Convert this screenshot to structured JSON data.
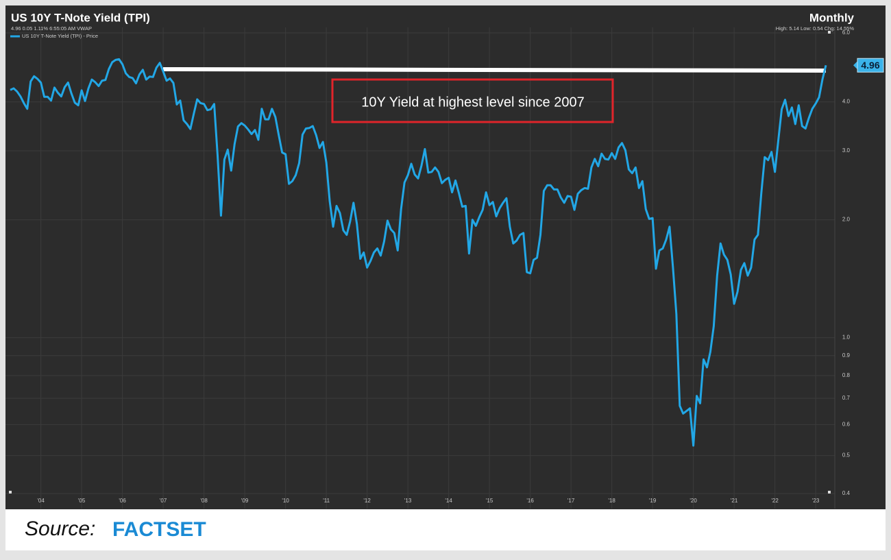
{
  "chart_data": {
    "type": "line",
    "title": "US 10Y T-Note Yield (TPI)",
    "subtitle": "4.96 0.05 1.11% 6:55:05 AM VWAP",
    "frequency": "Monthly",
    "stats": "High: 5.14 Low: 0.54 Chg: 14.55%",
    "annotation": "10Y Yield at highest level since 2007",
    "log_scale": true,
    "grid": true,
    "ylim": [
      0.4,
      6.0
    ],
    "yticks": [
      0.4,
      0.5,
      0.6,
      0.7,
      0.8,
      0.9,
      {
        "value": 1,
        "label": "1.0"
      },
      {
        "value": 2,
        "label": "2.0"
      },
      {
        "value": 3,
        "label": "3.0"
      },
      {
        "value": 4,
        "label": "4.0"
      },
      {
        "value": 6,
        "label": "6.0"
      }
    ],
    "categories": [
      null,
      null,
      null,
      null,
      null,
      null,
      null,
      null,
      null,
      "'04",
      null,
      null,
      null,
      null,
      null,
      null,
      null,
      null,
      null,
      null,
      null,
      "'05",
      null,
      null,
      null,
      null,
      null,
      null,
      null,
      null,
      null,
      null,
      null,
      "'06",
      null,
      null,
      null,
      null,
      null,
      null,
      null,
      null,
      null,
      null,
      null,
      "'07",
      null,
      null,
      null,
      null,
      null,
      null,
      null,
      null,
      null,
      null,
      null,
      "'08",
      null,
      null,
      null,
      null,
      null,
      null,
      null,
      null,
      null,
      null,
      null,
      "'09",
      null,
      null,
      null,
      null,
      null,
      null,
      null,
      null,
      null,
      null,
      null,
      "'10",
      null,
      null,
      null,
      null,
      null,
      null,
      null,
      null,
      null,
      null,
      null,
      "'11",
      null,
      null,
      null,
      null,
      null,
      null,
      null,
      null,
      null,
      null,
      null,
      "'12",
      null,
      null,
      null,
      null,
      null,
      null,
      null,
      null,
      null,
      null,
      null,
      "'13",
      null,
      null,
      null,
      null,
      null,
      null,
      null,
      null,
      null,
      null,
      null,
      "'14",
      null,
      null,
      null,
      null,
      null,
      null,
      null,
      null,
      null,
      null,
      null,
      "'15",
      null,
      null,
      null,
      null,
      null,
      null,
      null,
      null,
      null,
      null,
      null,
      "'16",
      null,
      null,
      null,
      null,
      null,
      null,
      null,
      null,
      null,
      null,
      null,
      "'17",
      null,
      null,
      null,
      null,
      null,
      null,
      null,
      null,
      null,
      null,
      null,
      "'18",
      null,
      null,
      null,
      null,
      null,
      null,
      null,
      null,
      null,
      null,
      null,
      "'19",
      null,
      null,
      null,
      null,
      null,
      null,
      null,
      null,
      null,
      null,
      null,
      "'20",
      null,
      null,
      null,
      null,
      null,
      null,
      null,
      null,
      null,
      null,
      null,
      "'21",
      null,
      null,
      null,
      null,
      null,
      null,
      null,
      null,
      null,
      null,
      null,
      "'22",
      null,
      null,
      null,
      null,
      null,
      null,
      null,
      null,
      null,
      null,
      null,
      "'23",
      null,
      null,
      null
    ],
    "series": [
      {
        "name": "US 10Y T-Note Yield (TPI) - Price",
        "color": "#22a7e6",
        "values": [
          4.29,
          4.33,
          4.25,
          4.13,
          3.97,
          3.84,
          4.51,
          4.65,
          4.58,
          4.48,
          4.12,
          4.12,
          4.03,
          4.35,
          4.22,
          4.13,
          4.36,
          4.48,
          4.2,
          3.98,
          3.92,
          4.28,
          4.02,
          4.33,
          4.56,
          4.49,
          4.39,
          4.53,
          4.55,
          4.85,
          5.05,
          5.12,
          5.14,
          4.99,
          4.73,
          4.63,
          4.6,
          4.46,
          4.7,
          4.83,
          4.56,
          4.64,
          4.63,
          4.89,
          5.03,
          4.78,
          4.53,
          4.59,
          4.47,
          3.94,
          4.03,
          3.59,
          3.51,
          3.41,
          3.73,
          4.06,
          3.97,
          3.95,
          3.81,
          3.83,
          3.95,
          2.92,
          2.05,
          2.85,
          3.02,
          2.67,
          3.12,
          3.46,
          3.53,
          3.48,
          3.4,
          3.31,
          3.39,
          3.2,
          3.84,
          3.61,
          3.61,
          3.84,
          3.66,
          3.29,
          2.97,
          2.94,
          2.47,
          2.51,
          2.6,
          2.79,
          3.3,
          3.42,
          3.43,
          3.47,
          3.29,
          3.05,
          3.16,
          2.8,
          2.23,
          1.92,
          2.17,
          2.08,
          1.88,
          1.83,
          1.98,
          2.21,
          1.95,
          1.59,
          1.65,
          1.51,
          1.57,
          1.65,
          1.69,
          1.62,
          1.76,
          1.99,
          1.89,
          1.85,
          1.67,
          2.13,
          2.49,
          2.6,
          2.78,
          2.61,
          2.55,
          2.75,
          3.03,
          2.64,
          2.65,
          2.72,
          2.65,
          2.48,
          2.53,
          2.56,
          2.35,
          2.52,
          2.34,
          2.16,
          2.17,
          1.64,
          2.0,
          1.93,
          2.03,
          2.12,
          2.35,
          2.18,
          2.22,
          2.04,
          2.14,
          2.21,
          2.27,
          1.92,
          1.74,
          1.77,
          1.83,
          1.85,
          1.47,
          1.46,
          1.58,
          1.6,
          1.83,
          2.37,
          2.45,
          2.45,
          2.39,
          2.39,
          2.28,
          2.21,
          2.3,
          2.29,
          2.12,
          2.33,
          2.38,
          2.41,
          2.4,
          2.72,
          2.86,
          2.74,
          2.95,
          2.86,
          2.85,
          2.96,
          2.86,
          3.06,
          3.14,
          3.01,
          2.69,
          2.63,
          2.72,
          2.41,
          2.51,
          2.13,
          2.01,
          2.02,
          1.5,
          1.67,
          1.69,
          1.78,
          1.92,
          1.51,
          1.15,
          0.67,
          0.64,
          0.65,
          0.66,
          0.53,
          0.71,
          0.68,
          0.88,
          0.84,
          0.92,
          1.07,
          1.44,
          1.74,
          1.63,
          1.58,
          1.45,
          1.22,
          1.31,
          1.49,
          1.55,
          1.44,
          1.51,
          1.78,
          1.83,
          2.34,
          2.89,
          2.84,
          2.98,
          2.65,
          3.19,
          3.83,
          4.05,
          3.68,
          3.87,
          3.51,
          3.92,
          3.47,
          3.42,
          3.64,
          3.84,
          3.96,
          4.11,
          4.57,
          4.96
        ]
      }
    ],
    "source_label": "Source:",
    "source": "FACTSET"
  }
}
